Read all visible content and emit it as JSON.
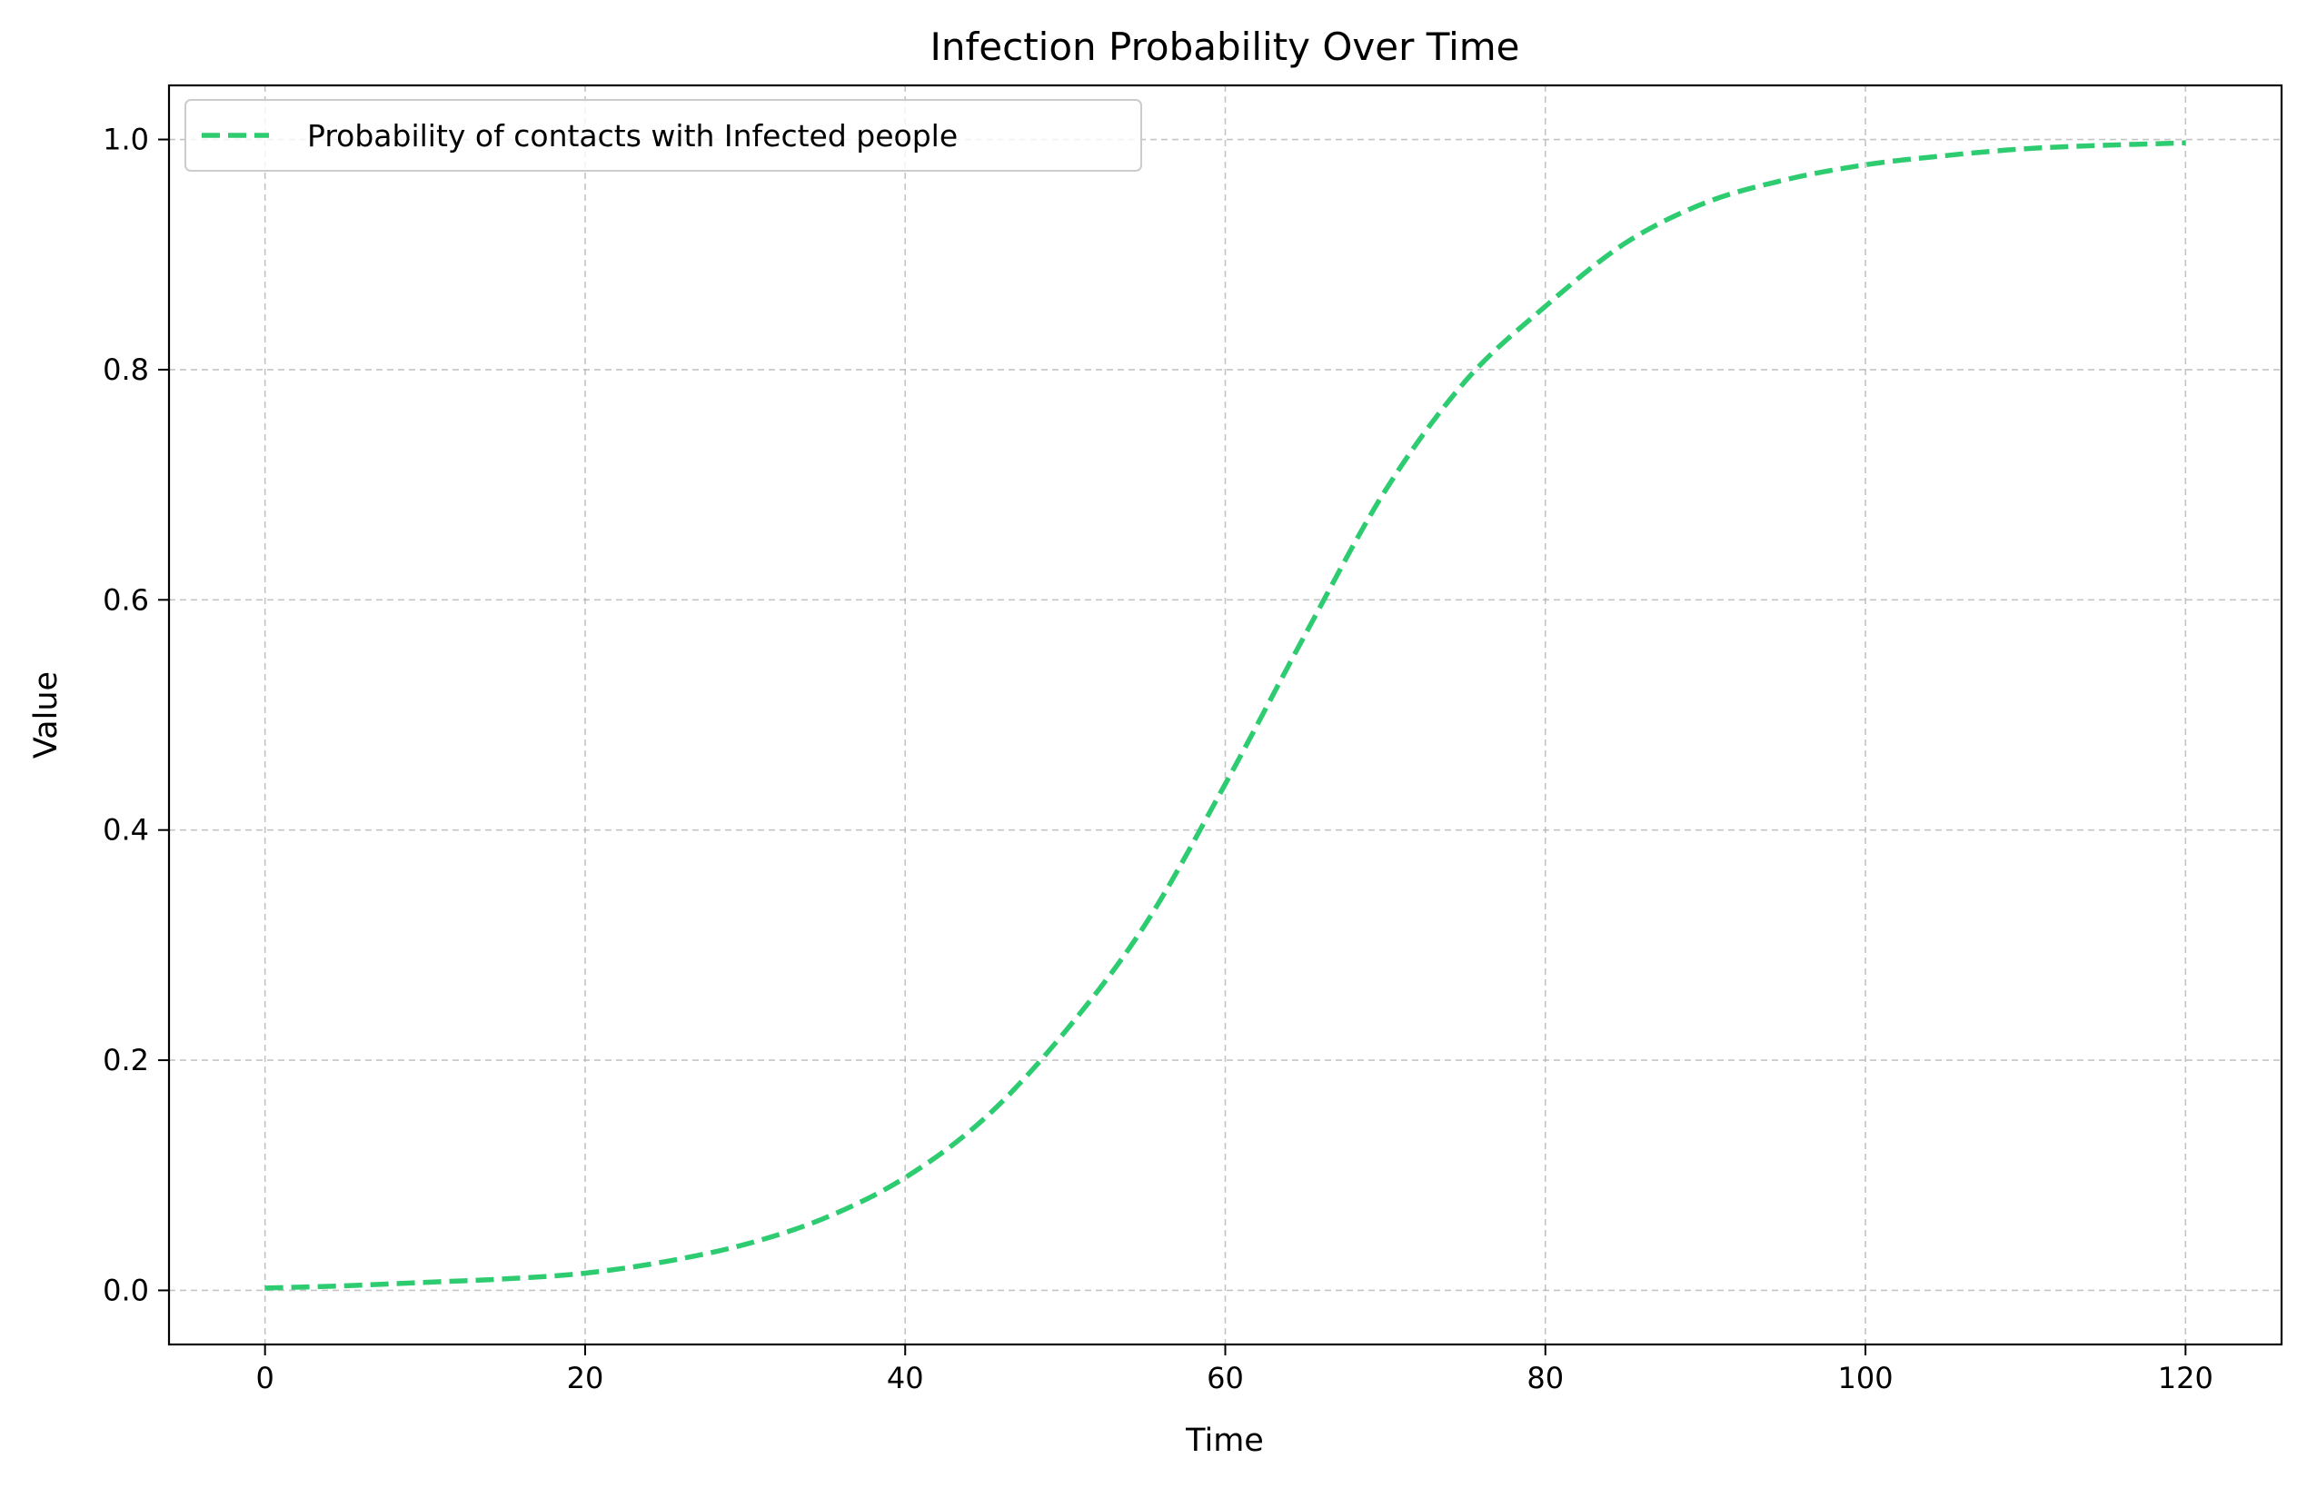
{
  "chart_data": {
    "type": "line",
    "title": "Infection Probability Over Time",
    "xlabel": "Time",
    "ylabel": "Value",
    "xlim": [
      -6,
      126
    ],
    "ylim": [
      -0.047,
      1.047
    ],
    "x_ticks": [
      0,
      20,
      40,
      60,
      80,
      100,
      120
    ],
    "x_tick_labels": [
      "0",
      "20",
      "40",
      "60",
      "80",
      "100",
      "120"
    ],
    "y_ticks": [
      0.0,
      0.2,
      0.4,
      0.6,
      0.8,
      1.0
    ],
    "y_tick_labels": [
      "0.0",
      "0.2",
      "0.4",
      "0.6",
      "0.8",
      "1.0"
    ],
    "grid": true,
    "legend_position": "upper-left",
    "series": [
      {
        "name": "Probability of contacts with Infected people",
        "color": "#2ecc71",
        "line_style": "dashed",
        "x": [
          0,
          5,
          10,
          15,
          20,
          25,
          30,
          35,
          40,
          45,
          50,
          55,
          60,
          65,
          70,
          75,
          80,
          85,
          90,
          95,
          100,
          105,
          110,
          115,
          120
        ],
        "y": [
          0.002,
          0.004,
          0.007,
          0.01,
          0.015,
          0.025,
          0.04,
          0.063,
          0.098,
          0.15,
          0.225,
          0.318,
          0.44,
          0.57,
          0.695,
          0.79,
          0.855,
          0.91,
          0.945,
          0.965,
          0.978,
          0.986,
          0.992,
          0.995,
          0.997
        ]
      }
    ]
  }
}
